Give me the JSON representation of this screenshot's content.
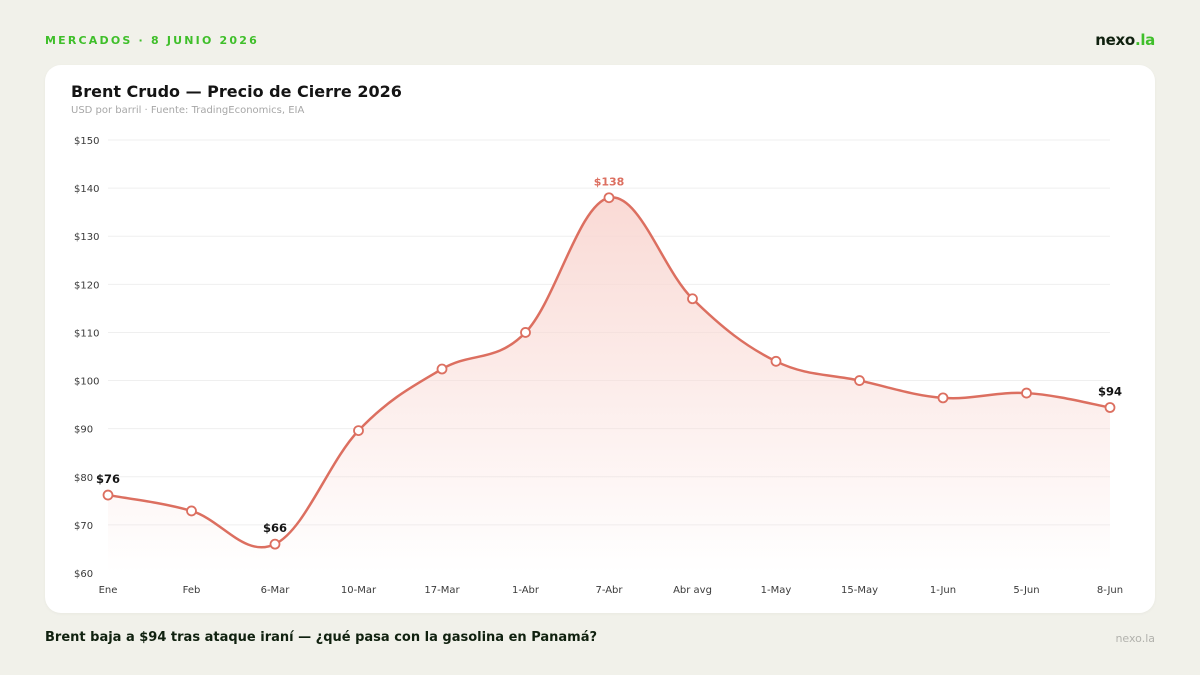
{
  "header": {
    "kicker": "MERCADOS · 8 JUNIO 2026",
    "brand_main": "nexo",
    "brand_accent": ".la"
  },
  "footer": {
    "headline": "Brent baja a $94 tras ataque iraní — ¿qué pasa con la gasolina en Panamá?",
    "brand": "nexo.la"
  },
  "colors": {
    "accent_green": "#3fbf2a",
    "line": "#dc6f60",
    "peak_label": "#dc6f60",
    "area_top": "#f9d8d3"
  },
  "chart_data": {
    "type": "line",
    "title": "Brent Crudo — Precio de Cierre 2026",
    "subtitle": "USD por barril · Fuente: TradingEconomics, EIA",
    "xlabel": "",
    "ylabel": "",
    "categories": [
      "Ene",
      "Feb",
      "6-Mar",
      "10-Mar",
      "17-Mar",
      "1-Abr",
      "7-Abr",
      "Abr avg",
      "1-May",
      "15-May",
      "1-Jun",
      "5-Jun",
      "8-Jun"
    ],
    "values": [
      76.2,
      72.9,
      66,
      89.6,
      102.4,
      110,
      138,
      117,
      104,
      100,
      96.4,
      97.4,
      94.4
    ],
    "ylim": [
      60,
      150
    ],
    "yticks": [
      60,
      70,
      80,
      90,
      100,
      110,
      120,
      130,
      140,
      150
    ],
    "ytick_labels": [
      "$60",
      "$70",
      "$80",
      "$90",
      "$100",
      "$110",
      "$120",
      "$130",
      "$140",
      "$150"
    ],
    "grid": true,
    "legend": "none",
    "annotations": [
      {
        "index": 0,
        "text": "$76",
        "style": "dark"
      },
      {
        "index": 2,
        "text": "$66",
        "style": "dark"
      },
      {
        "index": 6,
        "text": "$138",
        "style": "peak"
      },
      {
        "index": 12,
        "text": "$94",
        "style": "dark"
      }
    ]
  }
}
